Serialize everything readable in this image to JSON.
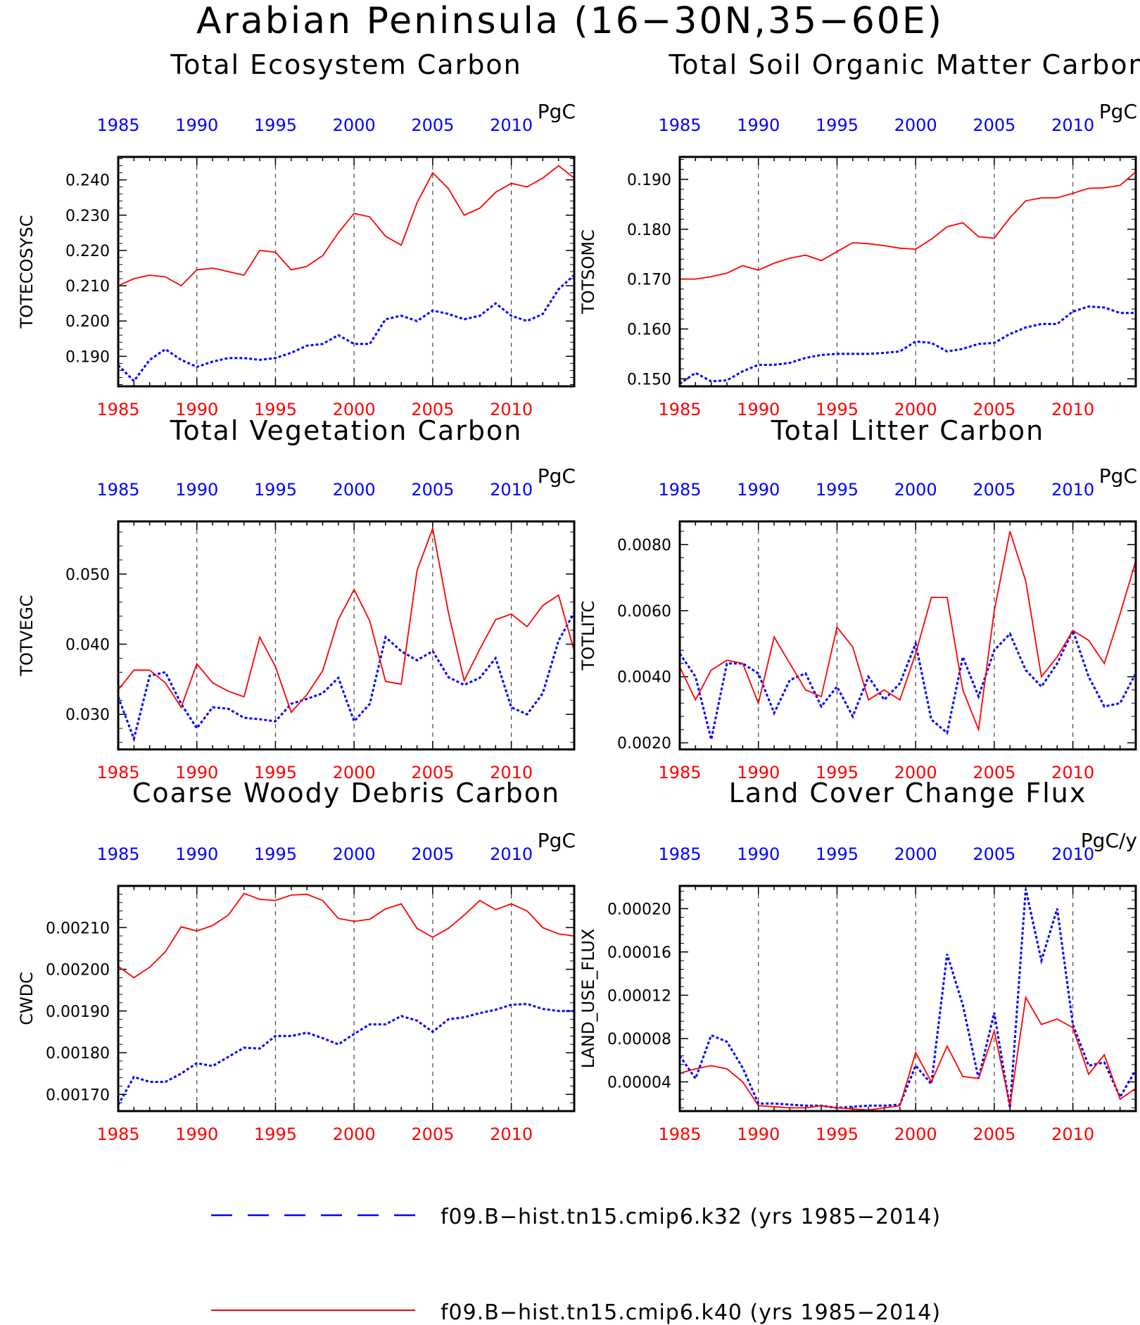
{
  "title": "Arabian Peninsula (16−30N,35−60E)",
  "colors": {
    "k32": "#0000ff",
    "k40": "#ff0000"
  },
  "legend": [
    {
      "label": "f09.B−hist.tn15.cmip6.k32 (yrs 1985−2014)",
      "color": "#0000ff",
      "style": "dashed"
    },
    {
      "label": "f09.B−hist.tn15.cmip6.k40 (yrs 1985−2014)",
      "color": "#ff0000",
      "style": "solid"
    }
  ],
  "chart_data": [
    {
      "type": "line",
      "title": "Total Ecosystem Carbon",
      "ylabel": "TOTECOSYSC",
      "units": "PgC",
      "xlim": [
        1985,
        2014
      ],
      "ylim": [
        0.1815,
        0.2465
      ],
      "xticks": [
        "1985",
        "1990",
        "1995",
        "2000",
        "2005",
        "2010"
      ],
      "yticks": [
        "0.190",
        "0.200",
        "0.210",
        "0.220",
        "0.230",
        "0.240"
      ],
      "x": [
        1985,
        1986,
        1987,
        1988,
        1989,
        1990,
        1991,
        1992,
        1993,
        1994,
        1995,
        1996,
        1997,
        1998,
        1999,
        2000,
        2001,
        2002,
        2003,
        2004,
        2005,
        2006,
        2007,
        2008,
        2009,
        2010,
        2011,
        2012,
        2013,
        2014
      ],
      "series": [
        {
          "values": [
            0.1875,
            0.183,
            0.189,
            0.192,
            0.189,
            0.187,
            0.1885,
            0.1895,
            0.1895,
            0.189,
            0.1895,
            0.191,
            0.193,
            0.1935,
            0.196,
            0.1935,
            0.1935,
            0.2005,
            0.2015,
            0.2,
            0.203,
            0.202,
            0.2005,
            0.2015,
            0.205,
            0.2015,
            0.2,
            0.202,
            0.209,
            0.213
          ]
        },
        {
          "values": [
            0.21,
            0.212,
            0.213,
            0.2125,
            0.21,
            0.2145,
            0.215,
            0.214,
            0.213,
            0.22,
            0.2195,
            0.2145,
            0.2155,
            0.2185,
            0.225,
            0.2305,
            0.2295,
            0.224,
            0.2215,
            0.2335,
            0.242,
            0.2375,
            0.23,
            0.232,
            0.2365,
            0.239,
            0.238,
            0.2405,
            0.244,
            0.2405
          ]
        }
      ]
    },
    {
      "type": "line",
      "title": "Total Soil Organic Matter Carbon",
      "ylabel": "TOTSOMC",
      "units": "PgC",
      "xlim": [
        1985,
        2014
      ],
      "ylim": [
        0.1485,
        0.1945
      ],
      "xticks": [
        "1985",
        "1990",
        "1995",
        "2000",
        "2005",
        "2010"
      ],
      "yticks": [
        "0.150",
        "0.160",
        "0.170",
        "0.180",
        "0.190"
      ],
      "x": [
        1985,
        1986,
        1987,
        1988,
        1989,
        1990,
        1991,
        1992,
        1993,
        1994,
        1995,
        1996,
        1997,
        1998,
        1999,
        2000,
        2001,
        2002,
        2003,
        2004,
        2005,
        2006,
        2007,
        2008,
        2009,
        2010,
        2011,
        2012,
        2013,
        2014
      ],
      "series": [
        {
          "values": [
            0.149,
            0.1512,
            0.1495,
            0.1497,
            0.1515,
            0.1528,
            0.1528,
            0.1532,
            0.1542,
            0.1548,
            0.155,
            0.155,
            0.155,
            0.1552,
            0.1555,
            0.1575,
            0.1572,
            0.1555,
            0.156,
            0.157,
            0.1572,
            0.159,
            0.1603,
            0.161,
            0.161,
            0.1635,
            0.1645,
            0.1643,
            0.1632,
            0.1632
          ]
        },
        {
          "values": [
            0.17,
            0.17,
            0.1705,
            0.1712,
            0.1727,
            0.1718,
            0.1732,
            0.1742,
            0.1748,
            0.1737,
            0.1755,
            0.1773,
            0.1771,
            0.1767,
            0.1762,
            0.176,
            0.178,
            0.1805,
            0.1813,
            0.1785,
            0.1782,
            0.1823,
            0.1857,
            0.1863,
            0.1863,
            0.1872,
            0.1882,
            0.1883,
            0.1888,
            0.1915
          ]
        }
      ]
    },
    {
      "type": "line",
      "title": "Total Vegetation Carbon",
      "ylabel": "TOTVEGC",
      "units": "PgC",
      "xlim": [
        1985,
        2014
      ],
      "ylim": [
        0.025,
        0.0575
      ],
      "xticks": [
        "1985",
        "1990",
        "1995",
        "2000",
        "2005",
        "2010"
      ],
      "yticks": [
        "0.030",
        "0.040",
        "0.050"
      ],
      "x": [
        1985,
        1986,
        1987,
        1988,
        1989,
        1990,
        1991,
        1992,
        1993,
        1994,
        1995,
        1996,
        1997,
        1998,
        1999,
        2000,
        2001,
        2002,
        2003,
        2004,
        2005,
        2006,
        2007,
        2008,
        2009,
        2010,
        2011,
        2012,
        2013,
        2014
      ],
      "series": [
        {
          "values": [
            0.0325,
            0.0265,
            0.0355,
            0.036,
            0.0315,
            0.028,
            0.031,
            0.0308,
            0.0295,
            0.0293,
            0.029,
            0.0315,
            0.0322,
            0.033,
            0.0352,
            0.029,
            0.0315,
            0.041,
            0.039,
            0.0377,
            0.039,
            0.0353,
            0.0342,
            0.0352,
            0.038,
            0.031,
            0.03,
            0.033,
            0.0405,
            0.0445
          ]
        },
        {
          "values": [
            0.0335,
            0.0363,
            0.0363,
            0.0345,
            0.031,
            0.0372,
            0.0345,
            0.0333,
            0.0325,
            0.041,
            0.0368,
            0.0303,
            0.0328,
            0.0362,
            0.0435,
            0.0478,
            0.0433,
            0.0347,
            0.0343,
            0.0505,
            0.0565,
            0.0445,
            0.0348,
            0.0393,
            0.0435,
            0.0443,
            0.0425,
            0.0455,
            0.047,
            0.039
          ]
        }
      ]
    },
    {
      "type": "line",
      "title": "Total Litter Carbon",
      "ylabel": "TOTLITC",
      "units": "PgC",
      "xlim": [
        1985,
        2014
      ],
      "ylim": [
        0.0018,
        0.0087
      ],
      "xticks": [
        "1985",
        "1990",
        "1995",
        "2000",
        "2005",
        "2010"
      ],
      "yticks": [
        "0.0020",
        "0.0040",
        "0.0060",
        "0.0080"
      ],
      "x": [
        1985,
        1986,
        1987,
        1988,
        1989,
        1990,
        1991,
        1992,
        1993,
        1994,
        1995,
        1996,
        1997,
        1998,
        1999,
        2000,
        2001,
        2002,
        2003,
        2004,
        2005,
        2006,
        2007,
        2008,
        2009,
        2010,
        2011,
        2012,
        2013,
        2014
      ],
      "series": [
        {
          "values": [
            0.0047,
            0.004,
            0.0021,
            0.0044,
            0.0044,
            0.0041,
            0.0029,
            0.0039,
            0.0041,
            0.0031,
            0.0037,
            0.0028,
            0.004,
            0.0033,
            0.0038,
            0.005,
            0.0027,
            0.0023,
            0.0046,
            0.0034,
            0.0048,
            0.0053,
            0.0042,
            0.0037,
            0.0044,
            0.0054,
            0.004,
            0.0031,
            0.0032,
            0.0041
          ]
        },
        {
          "values": [
            0.0043,
            0.0033,
            0.0042,
            0.0045,
            0.0044,
            0.0032,
            0.0052,
            0.0044,
            0.0036,
            0.0034,
            0.0055,
            0.0049,
            0.0033,
            0.0036,
            0.0033,
            0.0047,
            0.0064,
            0.0064,
            0.0036,
            0.0024,
            0.006,
            0.0084,
            0.0069,
            0.004,
            0.0046,
            0.0054,
            0.0051,
            0.0044,
            0.0059,
            0.0075
          ]
        }
      ]
    },
    {
      "type": "line",
      "title": "Coarse Woody Debris Carbon",
      "ylabel": "CWDC",
      "units": "PgC",
      "xlim": [
        1985,
        2014
      ],
      "ylim": [
        0.00166,
        0.0022
      ],
      "xticks": [
        "1985",
        "1990",
        "1995",
        "2000",
        "2005",
        "2010"
      ],
      "yticks": [
        "0.00170",
        "0.00180",
        "0.00190",
        "0.00200",
        "0.00210"
      ],
      "x": [
        1985,
        1986,
        1987,
        1988,
        1989,
        1990,
        1991,
        1992,
        1993,
        1994,
        1995,
        1996,
        1997,
        1998,
        1999,
        2000,
        2001,
        2002,
        2003,
        2004,
        2005,
        2006,
        2007,
        2008,
        2009,
        2010,
        2011,
        2012,
        2013,
        2014
      ],
      "series": [
        {
          "values": [
            0.001675,
            0.001742,
            0.00173,
            0.00173,
            0.00175,
            0.001775,
            0.001768,
            0.00179,
            0.001812,
            0.00181,
            0.00184,
            0.00184,
            0.001848,
            0.001835,
            0.00182,
            0.001845,
            0.001868,
            0.001868,
            0.001888,
            0.001877,
            0.00185,
            0.00188,
            0.001885,
            0.001895,
            0.001903,
            0.001915,
            0.001917,
            0.001905,
            0.0019,
            0.0019
          ]
        },
        {
          "values": [
            0.002007,
            0.00198,
            0.002005,
            0.002042,
            0.002102,
            0.002092,
            0.002105,
            0.00213,
            0.002182,
            0.002168,
            0.002165,
            0.002178,
            0.00218,
            0.002165,
            0.002122,
            0.002115,
            0.00212,
            0.002145,
            0.002157,
            0.002098,
            0.002077,
            0.002098,
            0.00213,
            0.002165,
            0.002143,
            0.002157,
            0.00214,
            0.0021,
            0.002085,
            0.00208
          ]
        }
      ]
    },
    {
      "type": "line",
      "title": "Land Cover Change Flux",
      "ylabel": "LAND_USE_FLUX",
      "units": "PgC/y",
      "xlim": [
        1985,
        2014
      ],
      "ylim": [
        1.3e-05,
        0.000221
      ],
      "xticks": [
        "1985",
        "1990",
        "1995",
        "2000",
        "2005",
        "2010"
      ],
      "yticks": [
        "0.00004",
        "0.00008",
        "0.00012",
        "0.00016",
        "0.00020"
      ],
      "x": [
        1985,
        1986,
        1987,
        1988,
        1989,
        1990,
        1991,
        1992,
        1993,
        1994,
        1995,
        1996,
        1997,
        1998,
        1999,
        2000,
        2001,
        2002,
        2003,
        2004,
        2005,
        2006,
        2007,
        2008,
        2009,
        2010,
        2011,
        2012,
        2013,
        2014
      ],
      "series": [
        {
          "values": [
            6.4e-05,
            4.3e-05,
            8.3e-05,
            7.7e-05,
            5.3e-05,
            2e-05,
            2e-05,
            1.9e-05,
            1.8e-05,
            1.8e-05,
            1.6e-05,
            1.7e-05,
            1.8e-05,
            1.8e-05,
            1.9e-05,
            5.5e-05,
            3.8e-05,
            0.000158,
            0.000111,
            4.3e-05,
            0.000104,
            1.6e-05,
            0.000218,
            0.000152,
            0.0002,
            9.3e-05,
            5.5e-05,
            5.8e-05,
            2.6e-05,
            5.1e-05
          ]
        },
        {
          "values": [
            4.8e-05,
            5.2e-05,
            5.5e-05,
            5.2e-05,
            4e-05,
            1.8e-05,
            1.7e-05,
            1.6e-05,
            1.6e-05,
            1.8e-05,
            1.6e-05,
            1.5e-05,
            1.4e-05,
            1.6e-05,
            1.8e-05,
            6.7e-05,
            4e-05,
            7.3e-05,
            4.5e-05,
            4.3e-05,
            8.7e-05,
            1.8e-05,
            0.000118,
            9.3e-05,
            9.8e-05,
            9e-05,
            4.7e-05,
            6.5e-05,
            2.4e-05,
            3.4e-05
          ]
        }
      ]
    }
  ]
}
